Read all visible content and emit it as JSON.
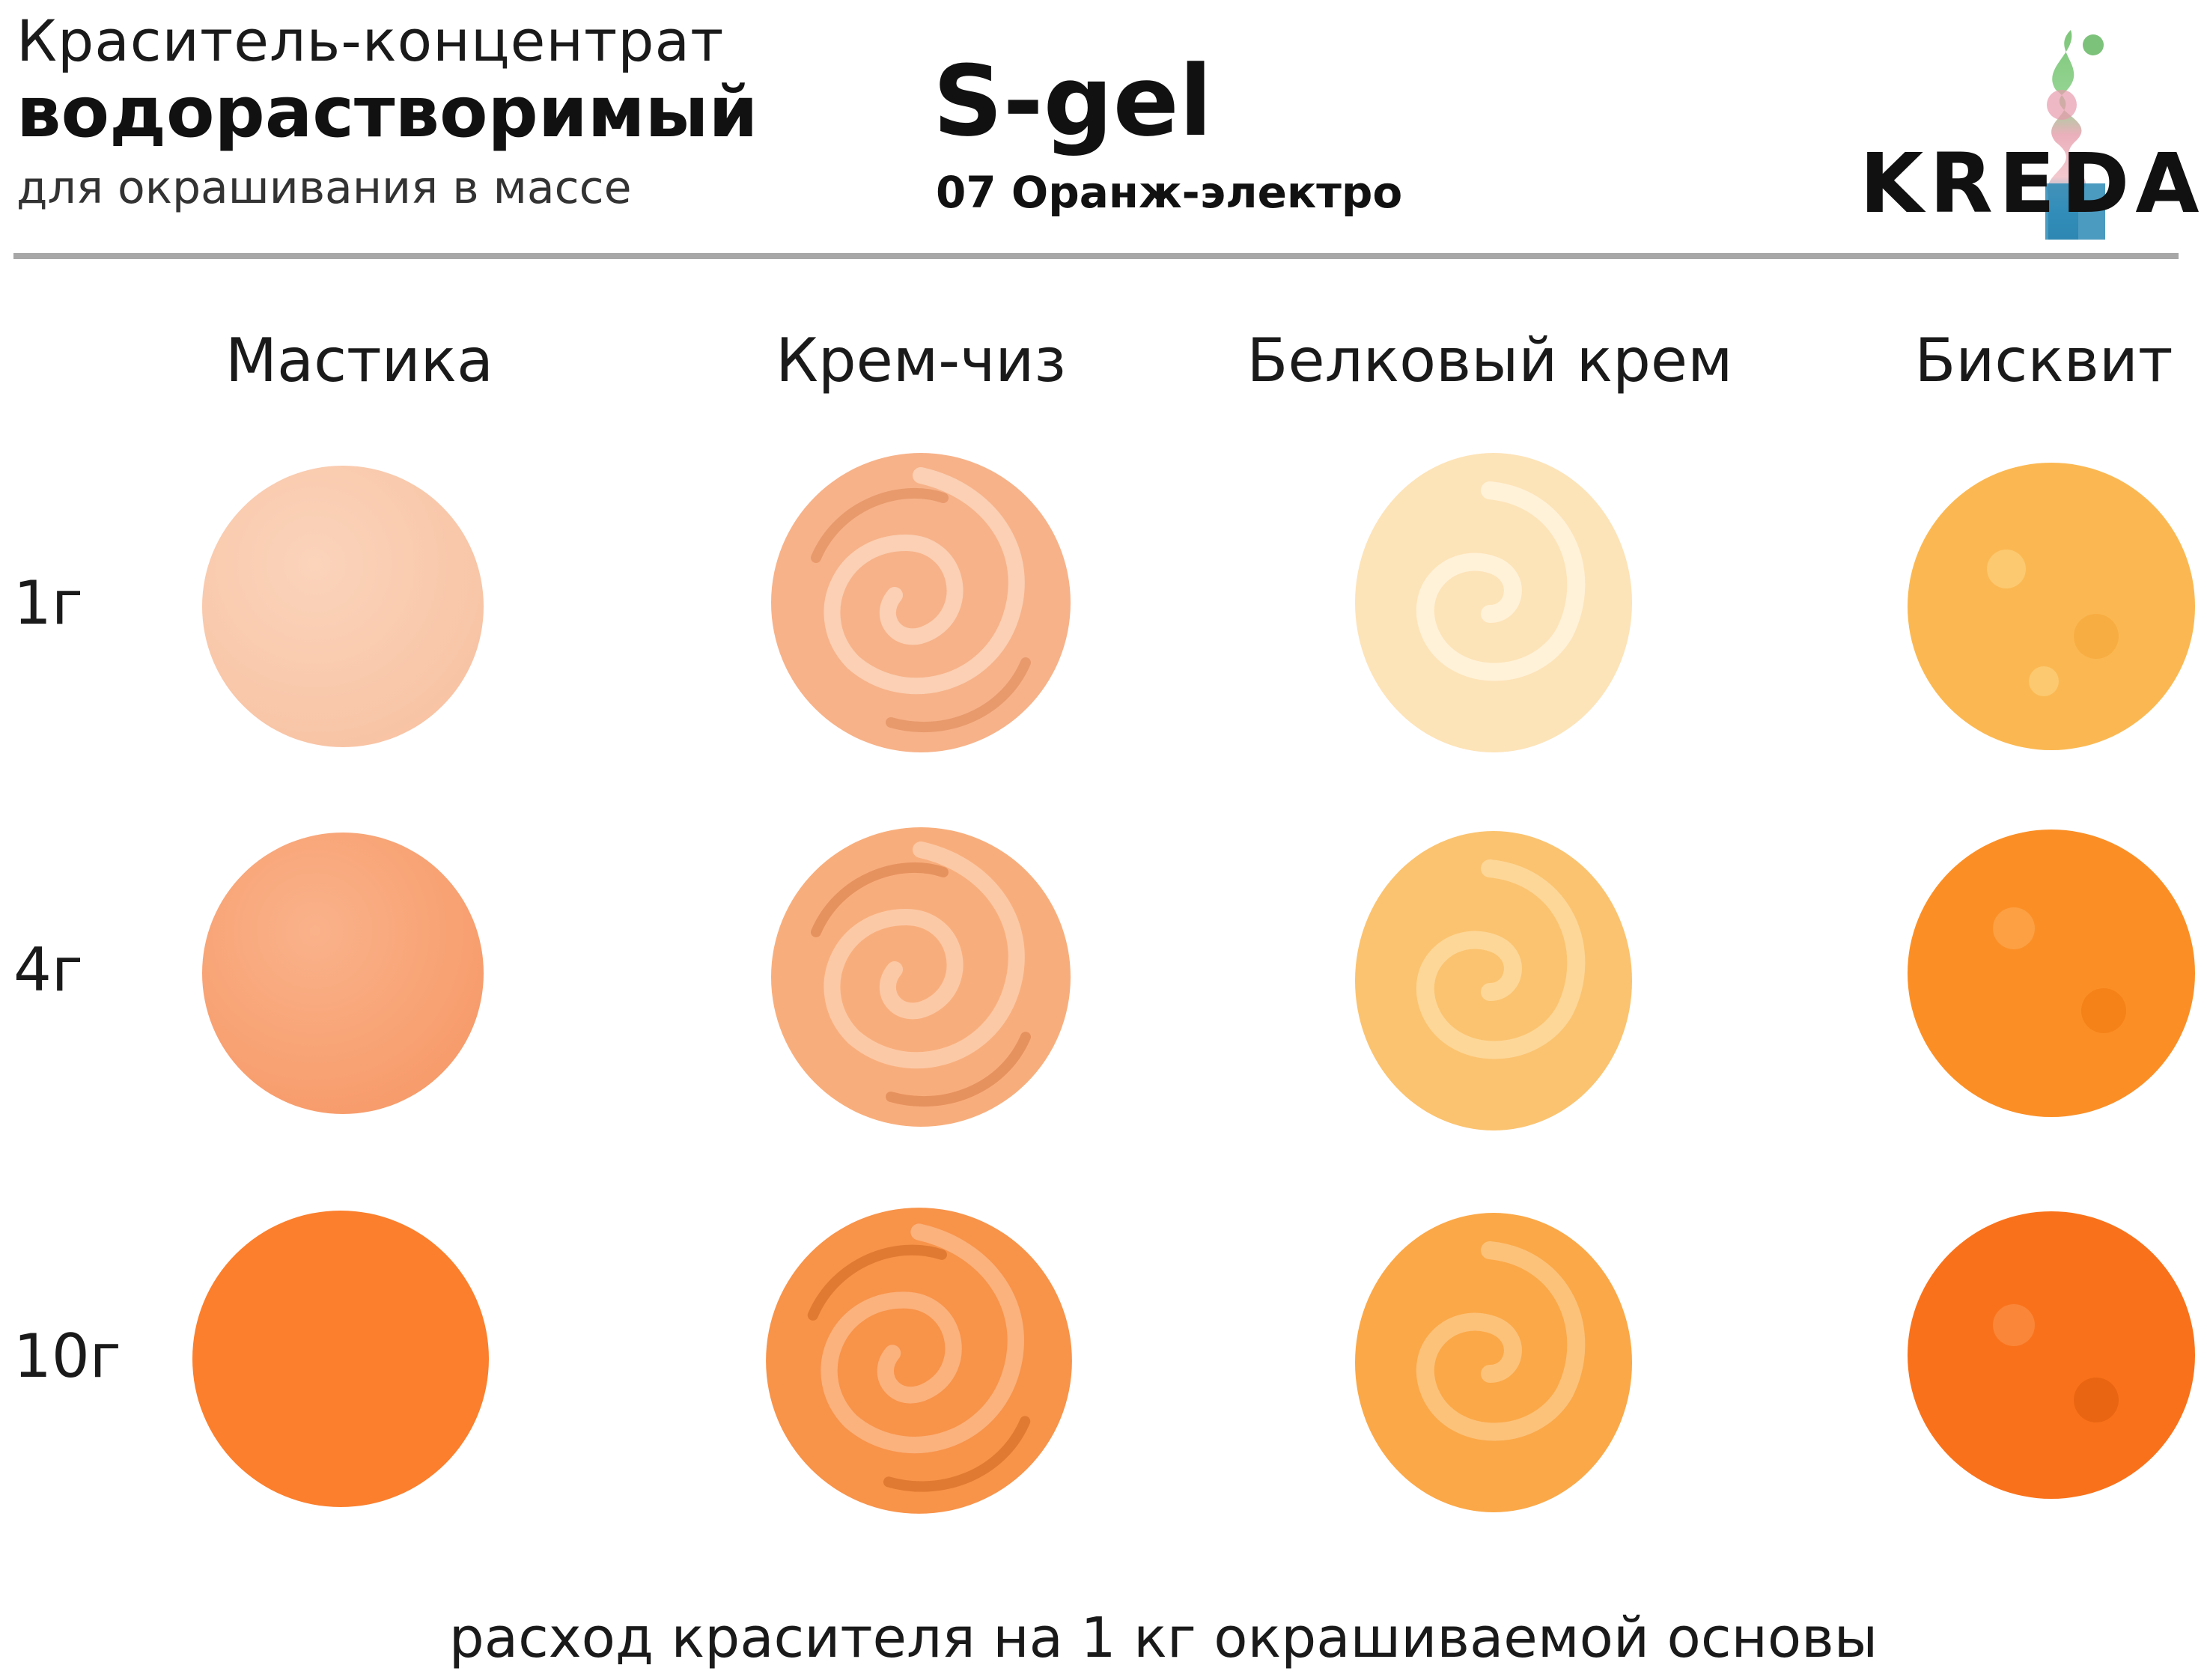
{
  "header": {
    "title_line1": "Краситель-концентрат",
    "title_line2": "водорастворимый",
    "title_line3": "для окрашивания в массе",
    "product_name": "S-gel",
    "shade_name": "07 Оранж-электро"
  },
  "logo": {
    "brand": "KREDA",
    "icon": "kreda-brand-icon"
  },
  "columns": [
    "Мастика",
    "Крем-чиз",
    "Белковый крем",
    "Бисквит"
  ],
  "rows": [
    "1г",
    "4г",
    "10г"
  ],
  "swatches": {
    "mastika": [
      "#f8c3a4",
      "#f79b6a",
      "#fb7f2d"
    ],
    "cream_cheese": [
      "#f7b289",
      "#f8ae7c",
      "#f8934a"
    ],
    "protein_cream": [
      "#fde3b8",
      "#fbc370",
      "#fba848"
    ],
    "biscuit": [
      "#fbb852",
      "#fb8f26",
      "#f9721b"
    ]
  },
  "footer": {
    "note": "расход красителя на 1 кг окрашиваемой основы"
  }
}
